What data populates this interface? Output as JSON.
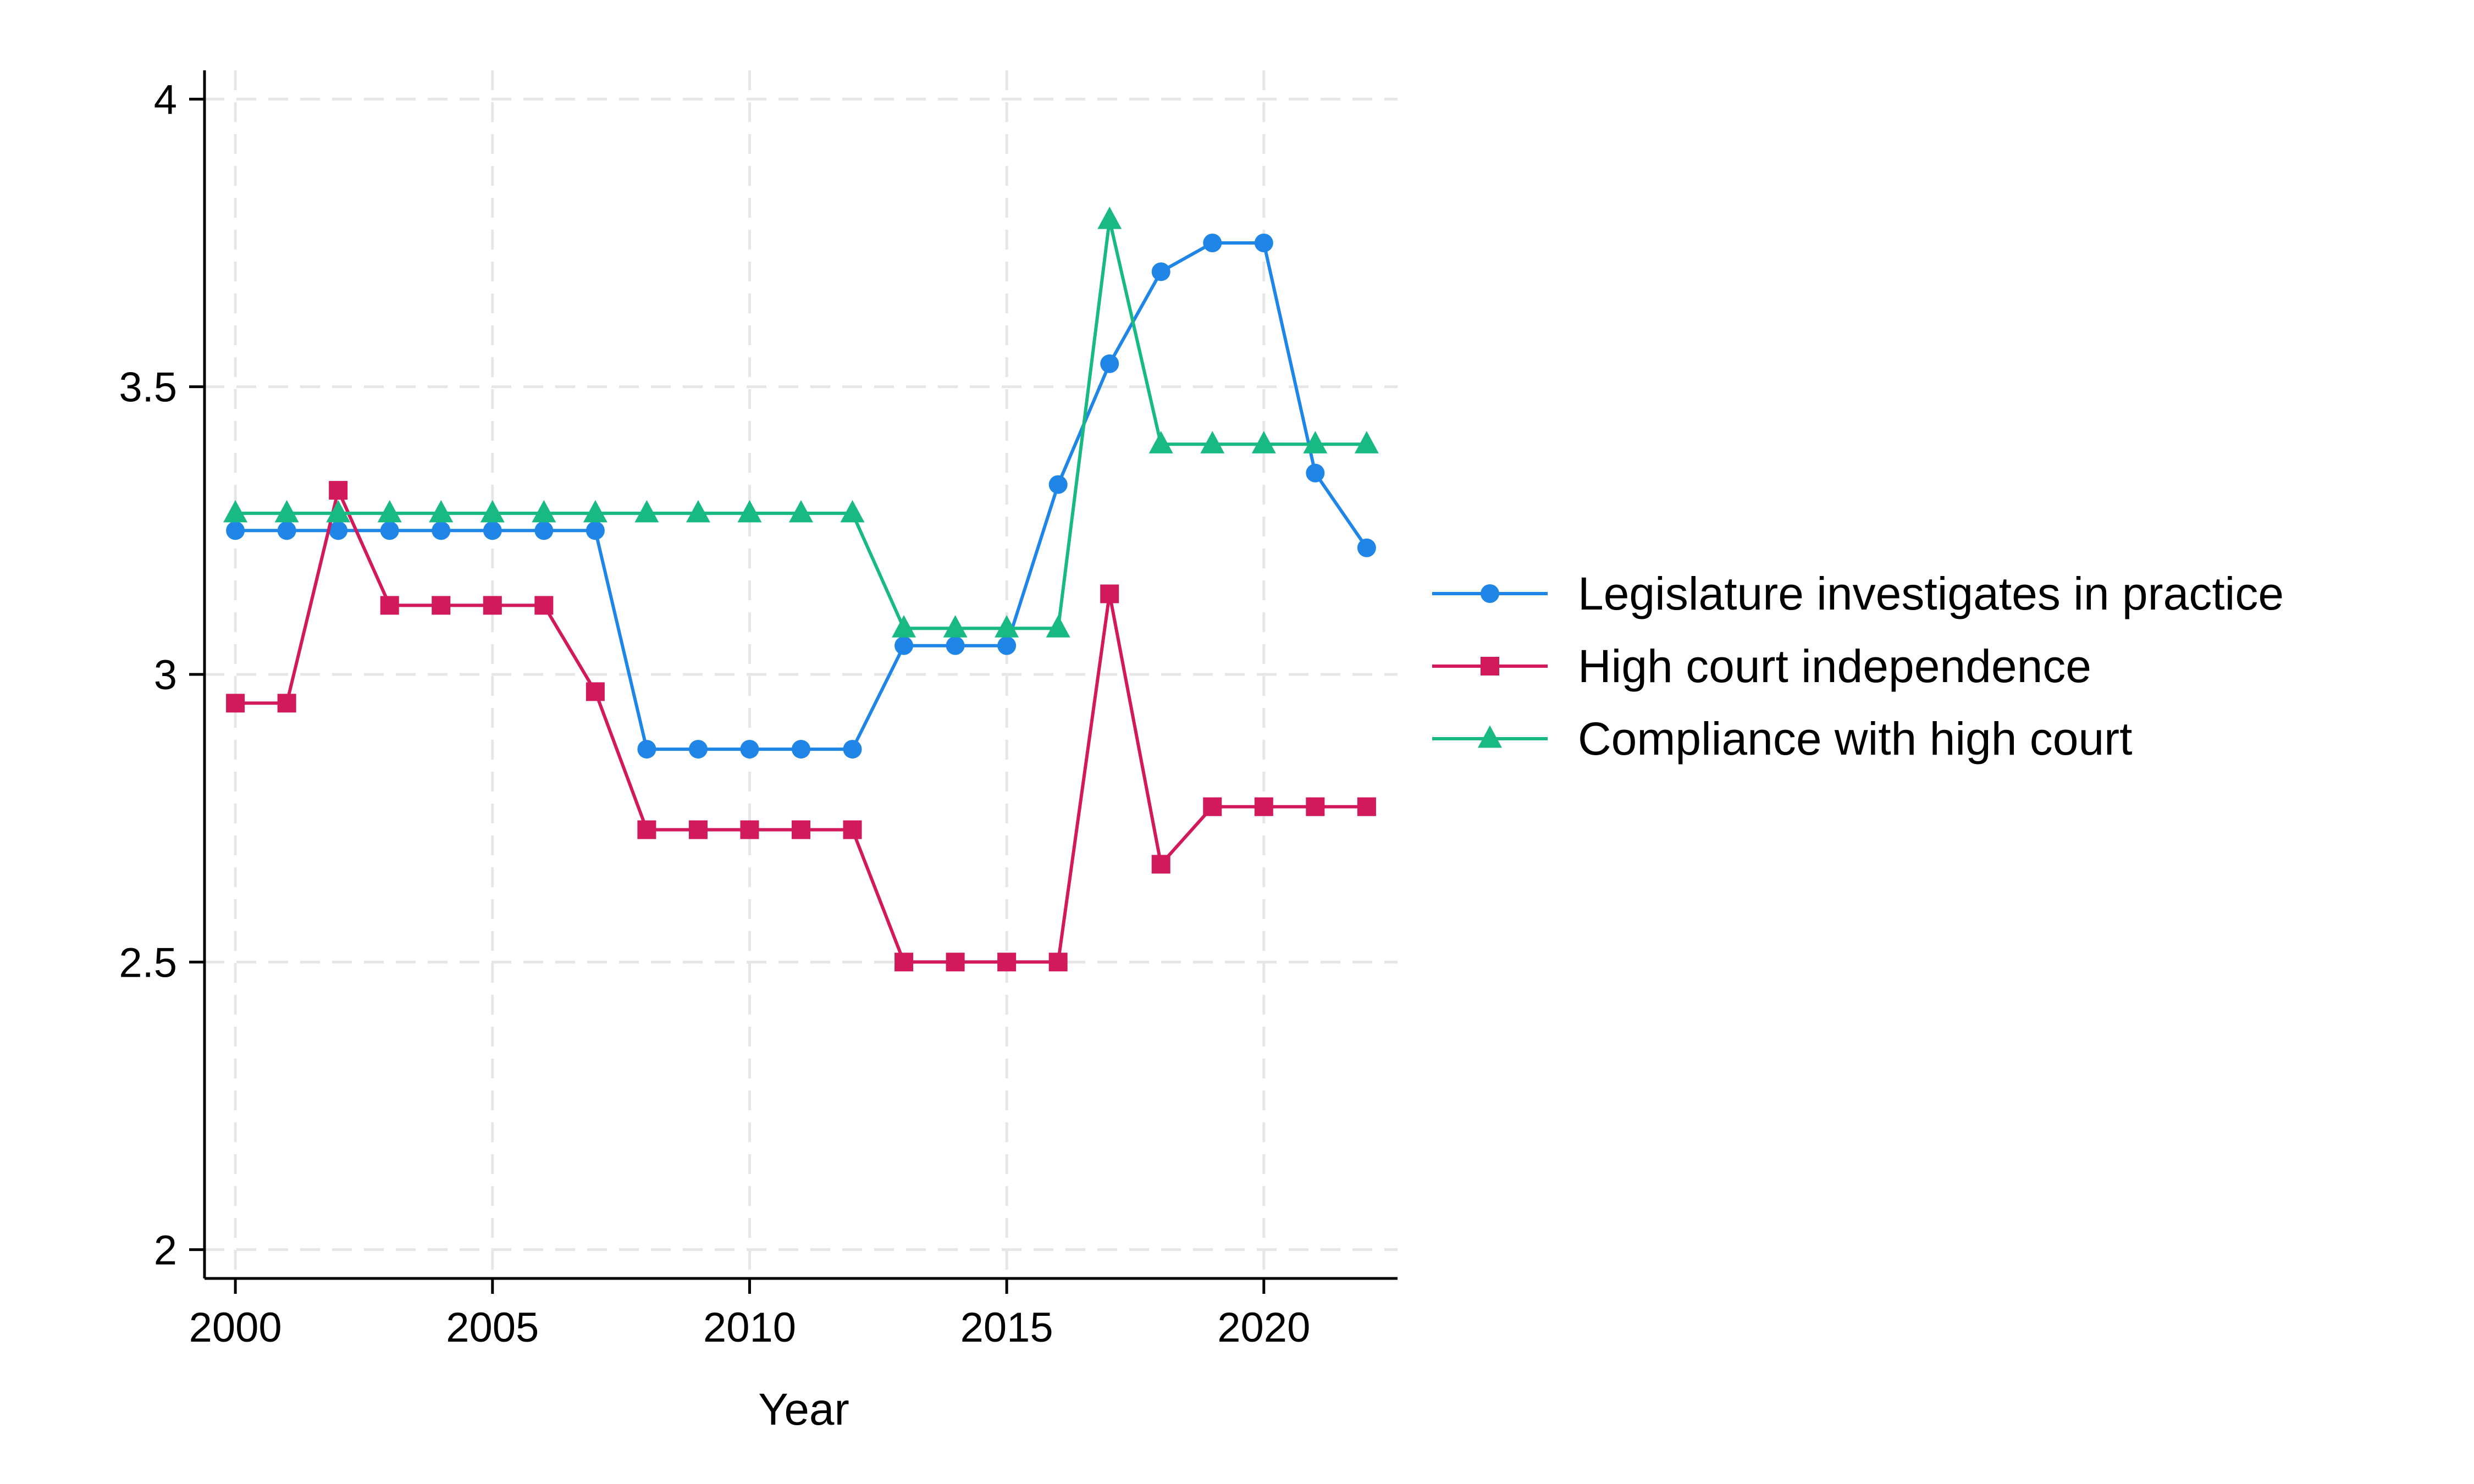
{
  "chart_data": {
    "type": "line",
    "title": "",
    "xlabel": "Year",
    "ylabel": "",
    "xlim": [
      1999.4,
      2022.6
    ],
    "ylim": [
      1.95,
      4.05
    ],
    "xticks": [
      2000,
      2005,
      2010,
      2015,
      2020
    ],
    "yticks": [
      2,
      2.5,
      3,
      3.5,
      4
    ],
    "grid": true,
    "legend_position": "right",
    "x": [
      2000,
      2001,
      2002,
      2003,
      2004,
      2005,
      2006,
      2007,
      2008,
      2009,
      2010,
      2011,
      2012,
      2013,
      2014,
      2015,
      2016,
      2017,
      2018,
      2019,
      2020,
      2021,
      2022
    ],
    "series": [
      {
        "name": "Legislature investigates in practice",
        "color": "#1f86e8",
        "marker": "circle",
        "values": [
          3.25,
          3.25,
          3.25,
          3.25,
          3.25,
          3.25,
          3.25,
          3.25,
          2.87,
          2.87,
          2.87,
          2.87,
          2.87,
          3.05,
          3.05,
          3.05,
          3.33,
          3.54,
          3.7,
          3.75,
          3.75,
          3.35,
          3.22
        ]
      },
      {
        "name": "High court independence",
        "color": "#d1195c",
        "marker": "square",
        "values": [
          2.95,
          2.95,
          3.32,
          3.12,
          3.12,
          3.12,
          3.12,
          2.97,
          2.73,
          2.73,
          2.73,
          2.73,
          2.73,
          2.5,
          2.5,
          2.5,
          2.5,
          3.14,
          2.67,
          2.77,
          2.77,
          2.77,
          2.77
        ]
      },
      {
        "name": "Compliance with high court",
        "color": "#19b984",
        "marker": "triangle",
        "values": [
          3.28,
          3.28,
          3.28,
          3.28,
          3.28,
          3.28,
          3.28,
          3.28,
          3.28,
          3.28,
          3.28,
          3.28,
          3.28,
          3.08,
          3.08,
          3.08,
          3.08,
          3.79,
          3.4,
          3.4,
          3.4,
          3.4,
          3.4
        ]
      }
    ]
  }
}
